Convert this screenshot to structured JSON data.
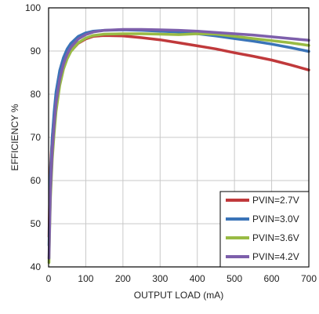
{
  "chart_data": {
    "type": "line",
    "title": "",
    "xlabel": "OUTPUT LOAD (mA)",
    "ylabel": "EFFICIENCY %",
    "xlim": [
      0,
      700
    ],
    "ylim": [
      40,
      100
    ],
    "xticks": [
      0,
      100,
      200,
      300,
      400,
      500,
      600,
      700
    ],
    "yticks": [
      40,
      50,
      60,
      70,
      80,
      90,
      100
    ],
    "grid": true,
    "legend_position": "bottom-right",
    "series": [
      {
        "name": "PVIN=2.7V",
        "color": "#c0393b",
        "x": [
          1,
          3,
          5,
          10,
          15,
          20,
          30,
          40,
          50,
          60,
          80,
          100,
          120,
          150,
          200,
          250,
          300,
          350,
          400,
          450,
          500,
          550,
          600,
          650,
          700
        ],
        "y": [
          47,
          56,
          63,
          70,
          75,
          79,
          83.5,
          86.5,
          88.5,
          90,
          91.8,
          92.8,
          93.4,
          93.6,
          93.5,
          93.1,
          92.6,
          91.9,
          91.2,
          90.5,
          89.6,
          88.8,
          87.9,
          86.8,
          85.6
        ]
      },
      {
        "name": "PVIN=3.0V",
        "color": "#3a74b8",
        "x": [
          1,
          3,
          5,
          10,
          15,
          20,
          30,
          40,
          50,
          60,
          80,
          100,
          120,
          150,
          200,
          250,
          300,
          350,
          400,
          450,
          500,
          550,
          600,
          650,
          700
        ],
        "y": [
          45,
          53,
          61,
          70,
          76,
          80.5,
          85.5,
          88.5,
          90.5,
          91.8,
          93.4,
          94.2,
          94.6,
          94.8,
          94.9,
          94.8,
          94.6,
          94.4,
          94,
          93.5,
          92.9,
          92.3,
          91.6,
          90.8,
          89.9
        ]
      },
      {
        "name": "PVIN=3.6V",
        "color": "#99bb44",
        "x": [
          1,
          3,
          5,
          10,
          15,
          20,
          30,
          40,
          50,
          60,
          80,
          100,
          120,
          150,
          200,
          250,
          300,
          350,
          400,
          450,
          500,
          550,
          600,
          650,
          700
        ],
        "y": [
          41,
          49,
          56,
          65,
          71,
          76,
          82,
          85.8,
          88.2,
          89.9,
          91.9,
          93,
          93.6,
          93.9,
          94,
          94,
          93.9,
          93.8,
          94,
          93.9,
          93.4,
          92.9,
          92.4,
          91.9,
          91.3
        ]
      },
      {
        "name": "PVIN=4.2V",
        "color": "#7d5fab",
        "x": [
          1,
          3,
          5,
          10,
          15,
          20,
          30,
          40,
          50,
          60,
          80,
          100,
          120,
          150,
          200,
          250,
          300,
          350,
          400,
          450,
          500,
          550,
          600,
          650,
          700
        ],
        "y": [
          42,
          50,
          58,
          67,
          73,
          78,
          83.5,
          87,
          89.3,
          90.9,
          92.8,
          93.8,
          94.4,
          94.8,
          95,
          95,
          94.9,
          94.8,
          94.6,
          94.3,
          94,
          93.7,
          93.3,
          92.9,
          92.5
        ]
      }
    ]
  }
}
